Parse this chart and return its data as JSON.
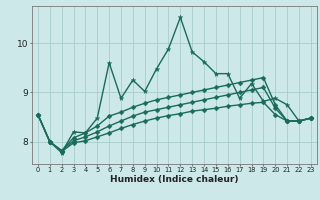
{
  "title": "",
  "xlabel": "Humidex (Indice chaleur)",
  "background_color": "#cce8e8",
  "grid_color": "#aacccc",
  "line_color": "#1a6b5a",
  "xlim": [
    -0.5,
    23.5
  ],
  "ylim": [
    7.55,
    10.75
  ],
  "yticks": [
    8,
    9,
    10
  ],
  "xticks": [
    0,
    1,
    2,
    3,
    4,
    5,
    6,
    7,
    8,
    9,
    10,
    11,
    12,
    13,
    14,
    15,
    16,
    17,
    18,
    19,
    20,
    21,
    22,
    23
  ],
  "lines": [
    [
      8.55,
      8.0,
      7.78,
      8.2,
      8.18,
      8.48,
      9.6,
      8.88,
      9.25,
      9.02,
      9.48,
      9.88,
      10.52,
      9.82,
      9.62,
      9.38,
      9.38,
      8.88,
      9.18,
      8.82,
      8.88,
      8.75,
      8.42,
      8.48
    ],
    [
      8.55,
      8.0,
      7.82,
      8.08,
      8.18,
      8.32,
      8.52,
      8.6,
      8.7,
      8.78,
      8.85,
      8.9,
      8.95,
      9.0,
      9.05,
      9.1,
      9.15,
      9.2,
      9.25,
      9.3,
      8.75,
      8.42,
      8.42,
      8.48
    ],
    [
      8.55,
      8.0,
      7.82,
      8.02,
      8.1,
      8.2,
      8.32,
      8.42,
      8.52,
      8.6,
      8.65,
      8.7,
      8.75,
      8.8,
      8.85,
      8.9,
      8.95,
      9.0,
      9.05,
      9.1,
      8.68,
      8.42,
      8.42,
      8.48
    ],
    [
      8.55,
      8.0,
      7.8,
      7.98,
      8.02,
      8.1,
      8.18,
      8.27,
      8.35,
      8.42,
      8.48,
      8.53,
      8.57,
      8.62,
      8.65,
      8.68,
      8.72,
      8.75,
      8.78,
      8.8,
      8.55,
      8.42,
      8.42,
      8.48
    ]
  ],
  "markersize_main": 3.5,
  "markersize_small": 2.5,
  "linewidth": 1.0
}
